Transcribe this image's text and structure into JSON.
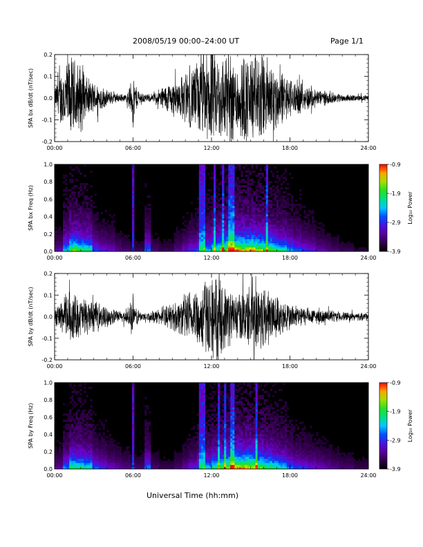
{
  "header": {
    "title": "2008/05/19   00:00–24:00 UT",
    "page": "Page 1/1"
  },
  "chart_data": [
    {
      "type": "line",
      "name": "bx-time-series",
      "ylabel": "SPA bx dB/dt (nT/sec)",
      "xlim": [
        0,
        24
      ],
      "ylim": [
        -0.2,
        0.2
      ],
      "xticks": [
        "00:00",
        "06:00",
        "12:00",
        "18:00",
        "24:00"
      ],
      "yticks": [
        "-0.2",
        "-0.1",
        "0.0",
        "0.1",
        "0.2"
      ],
      "envelope": {
        "x_hours": [
          0,
          0.5,
          1,
          1.5,
          2,
          2.5,
          3,
          3.5,
          4,
          4.5,
          5,
          5.5,
          5.9,
          6,
          6.1,
          6.5,
          7,
          7.5,
          8,
          8.5,
          9,
          9.5,
          10,
          10.5,
          11,
          11.5,
          12,
          12.5,
          13,
          13.5,
          14,
          14.5,
          15,
          15.5,
          16,
          16.5,
          17,
          17.5,
          18,
          18.5,
          19,
          19.5,
          20,
          21,
          22,
          23,
          24
        ],
        "amplitude": [
          0.05,
          0.15,
          0.22,
          0.2,
          0.18,
          0.1,
          0.08,
          0.07,
          0.04,
          0.03,
          0.02,
          0.02,
          0.1,
          0.18,
          0.08,
          0.04,
          0.02,
          0.02,
          0.05,
          0.07,
          0.09,
          0.1,
          0.13,
          0.16,
          0.2,
          0.22,
          0.25,
          0.22,
          0.24,
          0.23,
          0.2,
          0.24,
          0.22,
          0.24,
          0.23,
          0.2,
          0.16,
          0.13,
          0.1,
          0.09,
          0.07,
          0.06,
          0.05,
          0.03,
          0.02,
          0.015,
          0.015
        ]
      }
    },
    {
      "type": "heatmap",
      "name": "bx-spectrogram",
      "ylabel": "SPA bx Freq (Hz)",
      "xlim": [
        0,
        24
      ],
      "ylim": [
        0,
        1
      ],
      "xticks": [
        "00:00",
        "06:00",
        "12:00",
        "18:00",
        "24:00"
      ],
      "yticks": [
        "0.0",
        "0.2",
        "0.4",
        "0.6",
        "0.8",
        "1.0"
      ],
      "colorbar": {
        "label": "Log₁₀ Power",
        "range": [
          -3.9,
          -0.9
        ],
        "ticks": [
          "-0.9",
          "-1.9",
          "-2.9",
          "-3.9"
        ]
      },
      "activity": [
        0.3,
        0.7,
        1,
        0.9,
        0.85,
        0.5,
        0.4,
        0.35,
        0.25,
        0.2,
        0.15,
        0.15,
        0.6,
        0.2,
        0.15,
        0.15,
        0.25,
        0.35,
        0.45,
        0.55,
        0.7,
        0.85,
        1,
        1.1,
        1.2,
        1.15,
        1.2,
        1.1,
        1,
        0.9,
        0.8,
        0.65,
        0.55,
        0.45,
        0.4,
        0.3,
        0.25,
        0.2,
        0.15,
        0.15,
        0.1,
        0.1
      ],
      "lines_hours": [
        6,
        11.2,
        11.5,
        12.3,
        12.9,
        13.3,
        13.6,
        16.2
      ]
    },
    {
      "type": "line",
      "name": "by-time-series",
      "ylabel": "SPA by dB/dt (nT/sec)",
      "xlim": [
        0,
        24
      ],
      "ylim": [
        -0.2,
        0.2
      ],
      "xticks": [
        "00:00",
        "06:00",
        "12:00",
        "18:00",
        "24:00"
      ],
      "yticks": [
        "-0.2",
        "-0.1",
        "0.0",
        "0.1",
        "0.2"
      ],
      "envelope": {
        "x_hours": [
          0,
          0.5,
          1,
          1.5,
          2,
          2.5,
          3,
          3.5,
          4,
          4.5,
          5,
          5.5,
          5.9,
          6,
          6.1,
          6.5,
          7,
          7.5,
          8,
          8.5,
          9,
          9.5,
          10,
          10.5,
          11,
          11.5,
          12,
          12.5,
          13,
          13.5,
          14,
          14.5,
          15,
          15.5,
          16,
          16.5,
          17,
          17.5,
          18,
          18.5,
          19,
          19.5,
          20,
          21,
          22,
          23,
          24
        ],
        "amplitude": [
          0.04,
          0.08,
          0.14,
          0.12,
          0.1,
          0.09,
          0.08,
          0.06,
          0.05,
          0.04,
          0.03,
          0.03,
          0.09,
          0.12,
          0.06,
          0.03,
          0.02,
          0.03,
          0.04,
          0.05,
          0.07,
          0.09,
          0.12,
          0.14,
          0.16,
          0.19,
          0.22,
          0.2,
          0.17,
          0.14,
          0.12,
          0.14,
          0.16,
          0.2,
          0.18,
          0.14,
          0.11,
          0.09,
          0.07,
          0.06,
          0.05,
          0.04,
          0.04,
          0.03,
          0.025,
          0.02,
          0.02
        ]
      }
    },
    {
      "type": "heatmap",
      "name": "by-spectrogram",
      "ylabel": "SPA by Freq (Hz)",
      "xlim": [
        0,
        24
      ],
      "ylim": [
        0,
        1
      ],
      "xticks": [
        "00:00",
        "06:00",
        "12:00",
        "18:00",
        "24:00"
      ],
      "yticks": [
        "0.0",
        "0.2",
        "0.4",
        "0.6",
        "0.8",
        "1.0"
      ],
      "colorbar": {
        "label": "Log₁₀ Power",
        "range": [
          -3.9,
          -0.9
        ],
        "ticks": [
          "-0.9",
          "-1.9",
          "-2.9",
          "-3.9"
        ]
      },
      "activity": [
        0.3,
        0.6,
        0.9,
        0.85,
        0.8,
        0.55,
        0.45,
        0.35,
        0.3,
        0.25,
        0.2,
        0.2,
        0.6,
        0.2,
        0.15,
        0.15,
        0.2,
        0.3,
        0.4,
        0.55,
        0.7,
        0.85,
        1,
        1.1,
        1.2,
        1.2,
        1.15,
        1.05,
        0.95,
        0.85,
        0.75,
        0.6,
        0.5,
        0.45,
        0.4,
        0.35,
        0.3,
        0.25,
        0.2,
        0.2,
        0.15,
        0.15
      ],
      "lines_hours": [
        6,
        11.2,
        11.5,
        12.5,
        13.1,
        13.5,
        13.7,
        15.5
      ]
    }
  ],
  "xlabel": "Universal Time (hh:mm)"
}
